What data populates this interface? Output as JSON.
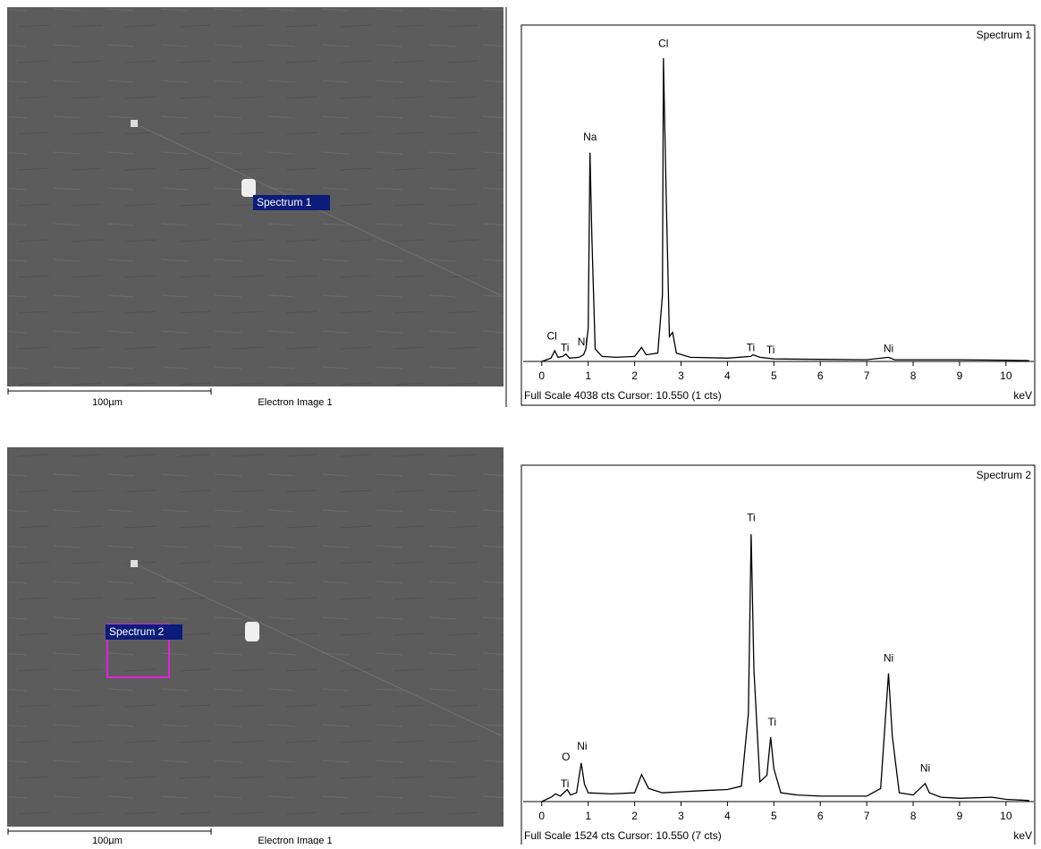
{
  "images": [
    {
      "marker_label": "Spectrum 1",
      "scale_bar": "100µm",
      "caption": "Electron Image 1"
    },
    {
      "marker_label": "Spectrum 2",
      "scale_bar": "100µm",
      "caption": "Electron Image 1"
    }
  ],
  "chart_data": [
    {
      "type": "line",
      "footer": "Full Scale 4038 cts Cursor: 10.550  (1 cts)",
      "x_label": "keV",
      "xlim": [
        -0.4,
        10.6
      ],
      "xticks": [
        0,
        1,
        2,
        3,
        4,
        5,
        6,
        7,
        8,
        9,
        10
      ],
      "ylim": [
        0,
        4038
      ],
      "x": [
        0,
        0.2,
        0.28,
        0.35,
        0.45,
        0.52,
        0.6,
        0.8,
        0.9,
        0.95,
        1.0,
        1.04,
        1.08,
        1.15,
        1.3,
        1.6,
        2.0,
        2.15,
        2.25,
        2.5,
        2.6,
        2.62,
        2.68,
        2.75,
        2.82,
        2.9,
        3.2,
        4.0,
        4.5,
        4.55,
        4.7,
        5,
        6,
        7,
        7.47,
        7.6,
        8,
        9,
        10,
        10.5
      ],
      "series": [
        {
          "name": "Spectrum 1",
          "color": "#000000",
          "values": [
            0,
            40,
            130,
            50,
            60,
            90,
            40,
            50,
            80,
            150,
            400,
            2520,
            1500,
            150,
            60,
            50,
            60,
            170,
            80,
            100,
            800,
            3660,
            2000,
            300,
            350,
            100,
            50,
            40,
            60,
            80,
            50,
            30,
            25,
            20,
            50,
            20,
            20,
            20,
            15,
            10
          ]
        }
      ],
      "annotations": [
        {
          "text": "Cl",
          "x": 0.22,
          "y": 300
        },
        {
          "text": "Ti",
          "x": 0.5,
          "y": 160
        },
        {
          "text": "Ni",
          "x": 0.88,
          "y": 230
        },
        {
          "text": "Na",
          "x": 1.04,
          "y": 2700
        },
        {
          "text": "Cl",
          "x": 2.62,
          "y": 3830
        },
        {
          "text": "Ti",
          "x": 4.5,
          "y": 160
        },
        {
          "text": "Ti",
          "x": 4.93,
          "y": 130
        },
        {
          "text": "Ni",
          "x": 7.47,
          "y": 150
        }
      ]
    },
    {
      "type": "line",
      "footer": "Full Scale 1524 cts Cursor: 10.550  (7 cts)",
      "x_label": "keV",
      "xlim": [
        -0.4,
        10.6
      ],
      "xticks": [
        0,
        1,
        2,
        3,
        4,
        5,
        6,
        7,
        8,
        9,
        10
      ],
      "ylim": [
        0,
        1524
      ],
      "x": [
        0,
        0.2,
        0.3,
        0.4,
        0.5,
        0.55,
        0.62,
        0.75,
        0.85,
        0.92,
        1.0,
        1.5,
        2.0,
        2.15,
        2.3,
        2.6,
        3,
        3.5,
        4.0,
        4.3,
        4.45,
        4.51,
        4.57,
        4.7,
        4.85,
        4.93,
        5.0,
        5.15,
        5.5,
        6,
        7,
        7.3,
        7.47,
        7.55,
        7.7,
        8.0,
        8.2,
        8.26,
        8.35,
        8.6,
        9,
        9.7,
        10,
        10.5
      ],
      "series": [
        {
          "name": "Spectrum 2",
          "color": "#000000",
          "values": [
            0,
            20,
            35,
            25,
            45,
            55,
            30,
            40,
            176,
            80,
            40,
            35,
            40,
            123,
            60,
            40,
            45,
            50,
            55,
            70,
            400,
            1218,
            600,
            90,
            120,
            294,
            150,
            40,
            30,
            25,
            25,
            60,
            584,
            300,
            40,
            30,
            70,
            82,
            40,
            20,
            15,
            20,
            10,
            5
          ]
        }
      ],
      "annotations": [
        {
          "text": "O",
          "x": 0.52,
          "y": 200
        },
        {
          "text": "Ti",
          "x": 0.5,
          "y": 78
        },
        {
          "text": "Ni",
          "x": 0.87,
          "y": 250
        },
        {
          "text": "Ti",
          "x": 4.51,
          "y": 1290
        },
        {
          "text": "Ti",
          "x": 4.96,
          "y": 360
        },
        {
          "text": "Ni",
          "x": 7.47,
          "y": 650
        },
        {
          "text": "Ni",
          "x": 8.26,
          "y": 150
        }
      ]
    }
  ]
}
